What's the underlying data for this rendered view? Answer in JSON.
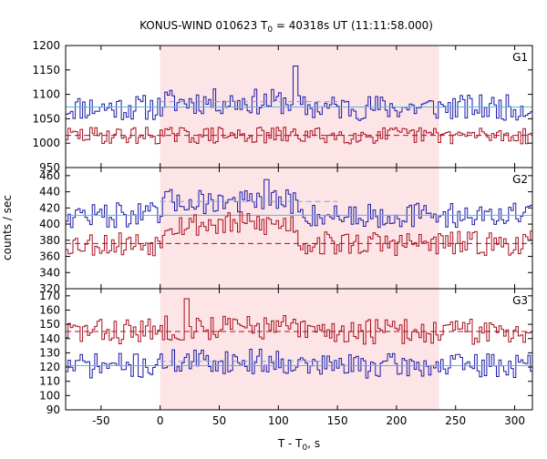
{
  "title_prefix": "KONUS-WIND 010623 T",
  "title_sub": "0",
  "title_suffix": " = 40318s UT (11:11:58.000)",
  "ylabel": "counts / sec",
  "xlabel_prefix": "T - T",
  "xlabel_sub": "0",
  "xlabel_suffix": ", s",
  "colors": {
    "series_high": "#1a1aa8",
    "series_low": "#a80f1e",
    "bg_high": "#5ab4e6",
    "bg_low": "#a80f1e",
    "highlight": "#fde4e6",
    "axis": "#000000"
  },
  "chart_data": [
    {
      "type": "line",
      "panel": "G1",
      "xlim": [
        -80,
        315
      ],
      "ylim": [
        950,
        1200
      ],
      "xticks": [
        -50,
        0,
        50,
        100,
        150,
        200,
        250,
        300
      ],
      "yticks": [
        950,
        1000,
        1050,
        1100,
        1150,
        1200
      ],
      "highlight_interval": [
        0,
        236
      ],
      "series": [
        {
          "values_range": [
            1040,
            1160
          ],
          "mean": 1078,
          "bg_level": 1073,
          "bg_level_burst": 1085,
          "baseline": 1074,
          "seed": 11,
          "spike_x": 114,
          "spike_y": 1158
        },
        {
          "values_range": [
            990,
            1070
          ],
          "mean": 1018,
          "bg_level": 1016,
          "bg_level_burst": 1016,
          "baseline": 1016,
          "seed": 29
        }
      ]
    },
    {
      "type": "line",
      "panel": "G2",
      "xlim": [
        -80,
        315
      ],
      "ylim": [
        320,
        470
      ],
      "xticks": [
        -50,
        0,
        50,
        100,
        150,
        200,
        250,
        300
      ],
      "yticks": [
        320,
        340,
        360,
        380,
        400,
        420,
        440,
        460
      ],
      "highlight_interval": [
        0,
        236
      ],
      "series": [
        {
          "values_range": [
            385,
            455
          ],
          "mean": 412,
          "bg_level": 411,
          "bg_level_burst": 428,
          "baseline": 411,
          "seed": 47,
          "spike_x": 88,
          "spike_y": 455
        },
        {
          "values_range": [
            350,
            420
          ],
          "mean": 378,
          "bg_level": 376,
          "bg_level_burst": 400,
          "baseline": 376,
          "seed": 53
        }
      ]
    },
    {
      "type": "line",
      "panel": "G3",
      "xlim": [
        -80,
        315
      ],
      "ylim": [
        90,
        175
      ],
      "xticks": [
        -50,
        0,
        50,
        100,
        150,
        200,
        250,
        300
      ],
      "yticks": [
        90,
        100,
        110,
        120,
        130,
        140,
        150,
        160,
        170
      ],
      "highlight_interval": [
        0,
        236
      ],
      "series": [
        {
          "values_range": [
            110,
            150
          ],
          "mean": 121,
          "bg_level": 121,
          "bg_level_burst": 124,
          "baseline": 121,
          "seed": 71
        },
        {
          "values_range": [
            128,
            170
          ],
          "mean": 146,
          "bg_level": 145,
          "bg_level_burst": 148,
          "baseline": 145,
          "seed": 83,
          "spike_x": 22,
          "spike_y": 168
        }
      ]
    }
  ]
}
